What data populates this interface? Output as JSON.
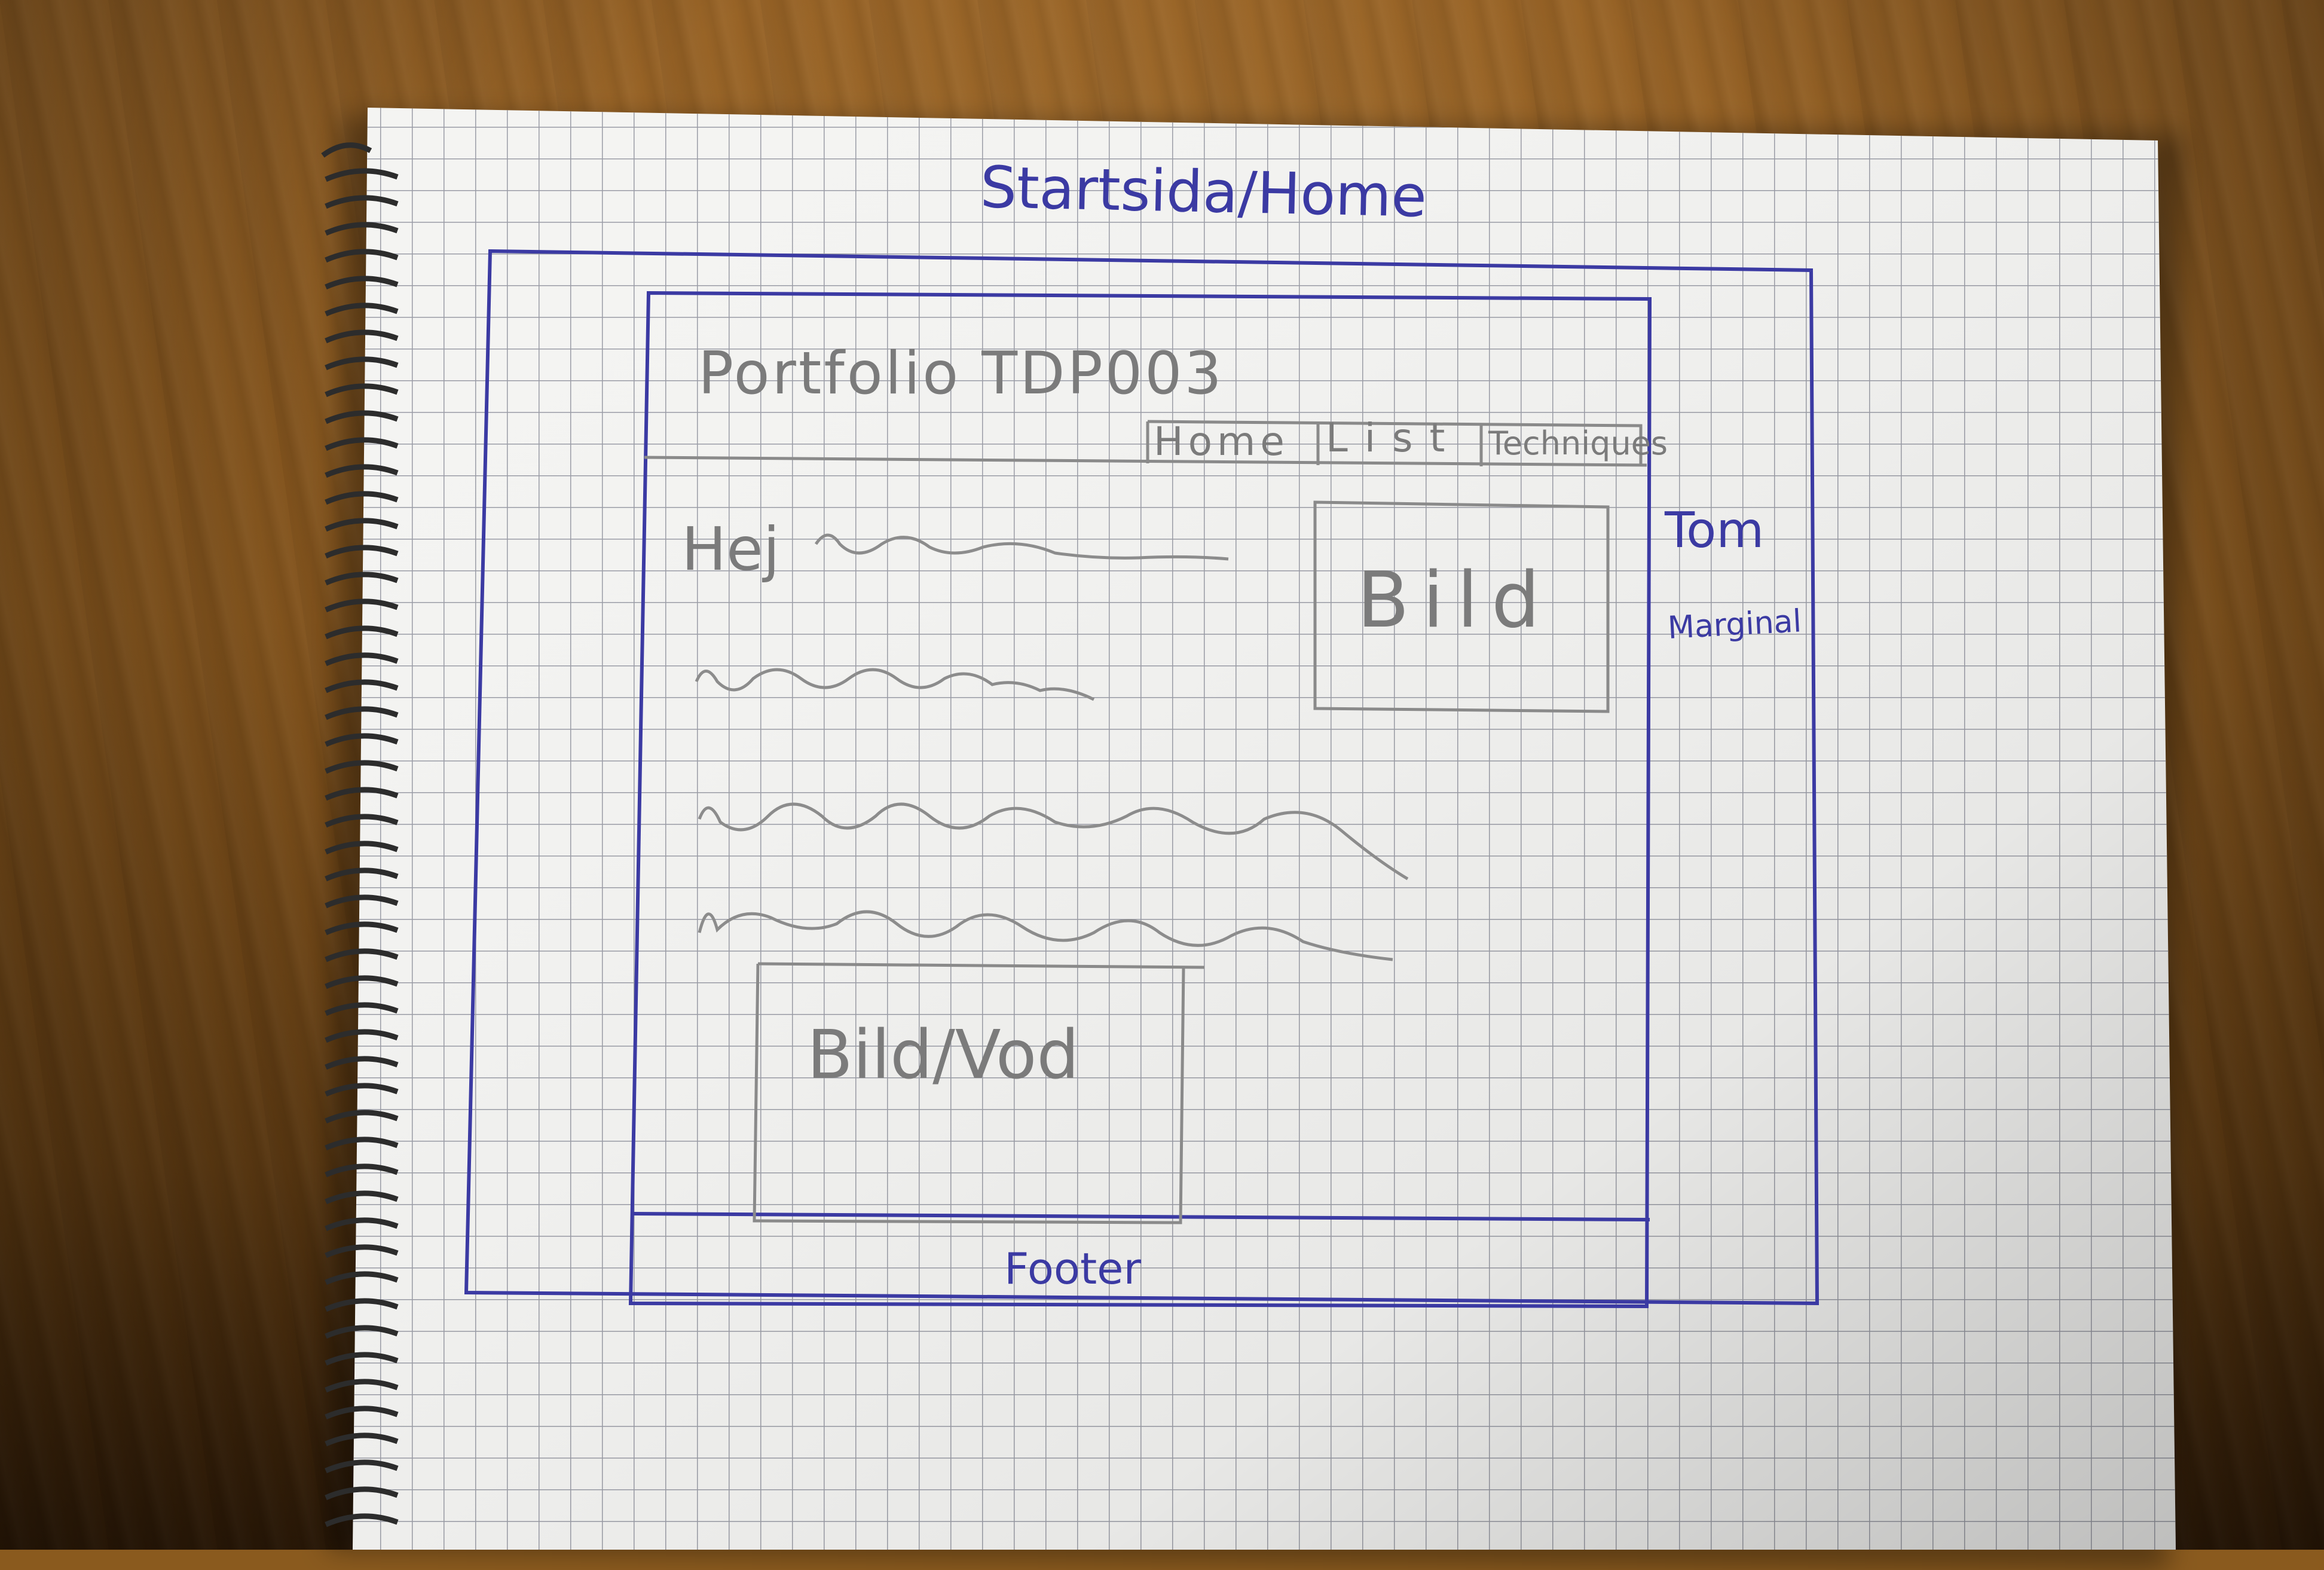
{
  "sketch": {
    "title": "Startsida/Home",
    "site_title": "Portfolio TDP003",
    "nav": [
      "Home",
      "List",
      "Techniques"
    ],
    "greeting": "Hej",
    "image_label": "Bild",
    "media_label": "Bild/Vod",
    "margin_note": [
      "Tom",
      "Marginal"
    ],
    "footer_label": "Footer"
  },
  "colors": {
    "table_wood": "#8c5a1f",
    "paper": "#f4f4f2",
    "grid_lines": "#9a9ca6",
    "ink_pen": "#3b3aa3",
    "pencil": "#7b7b7b"
  }
}
